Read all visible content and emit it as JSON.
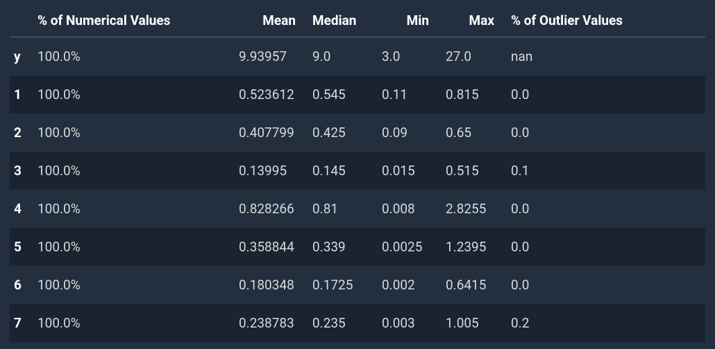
{
  "table": {
    "type": "table",
    "background_color": "#232f3e",
    "row_stripe_color": "#1a2330",
    "header_border_color": "#5a6b7a",
    "text_color": "#d5dbdb",
    "header_text_color": "#ffffff",
    "font_size_pt": 14,
    "columns": [
      "",
      "% of Numerical Values",
      "Mean",
      "Median",
      "Min",
      "Max",
      "% of Outlier Values"
    ],
    "column_align": [
      "left",
      "left",
      "right",
      "left",
      "right",
      "right",
      "left"
    ],
    "rows": [
      {
        "label": "y",
        "pct_numerical": "100.0%",
        "mean": "9.93957",
        "median": "9.0",
        "min": "3.0",
        "max": "27.0",
        "pct_outlier": "nan"
      },
      {
        "label": "1",
        "pct_numerical": "100.0%",
        "mean": "0.523612",
        "median": "0.545",
        "min": "0.11",
        "max": "0.815",
        "pct_outlier": "0.0"
      },
      {
        "label": "2",
        "pct_numerical": "100.0%",
        "mean": "0.407799",
        "median": "0.425",
        "min": "0.09",
        "max": "0.65",
        "pct_outlier": "0.0"
      },
      {
        "label": "3",
        "pct_numerical": "100.0%",
        "mean": "0.13995",
        "median": "0.145",
        "min": "0.015",
        "max": "0.515",
        "pct_outlier": "0.1"
      },
      {
        "label": "4",
        "pct_numerical": "100.0%",
        "mean": "0.828266",
        "median": "0.81",
        "min": "0.008",
        "max": "2.8255",
        "pct_outlier": "0.0"
      },
      {
        "label": "5",
        "pct_numerical": "100.0%",
        "mean": "0.358844",
        "median": "0.339",
        "min": "0.0025",
        "max": "1.2395",
        "pct_outlier": "0.0"
      },
      {
        "label": "6",
        "pct_numerical": "100.0%",
        "mean": "0.180348",
        "median": "0.1725",
        "min": "0.002",
        "max": "0.6415",
        "pct_outlier": "0.0"
      },
      {
        "label": "7",
        "pct_numerical": "100.0%",
        "mean": "0.238783",
        "median": "0.235",
        "min": "0.003",
        "max": "1.005",
        "pct_outlier": "0.2"
      }
    ]
  }
}
